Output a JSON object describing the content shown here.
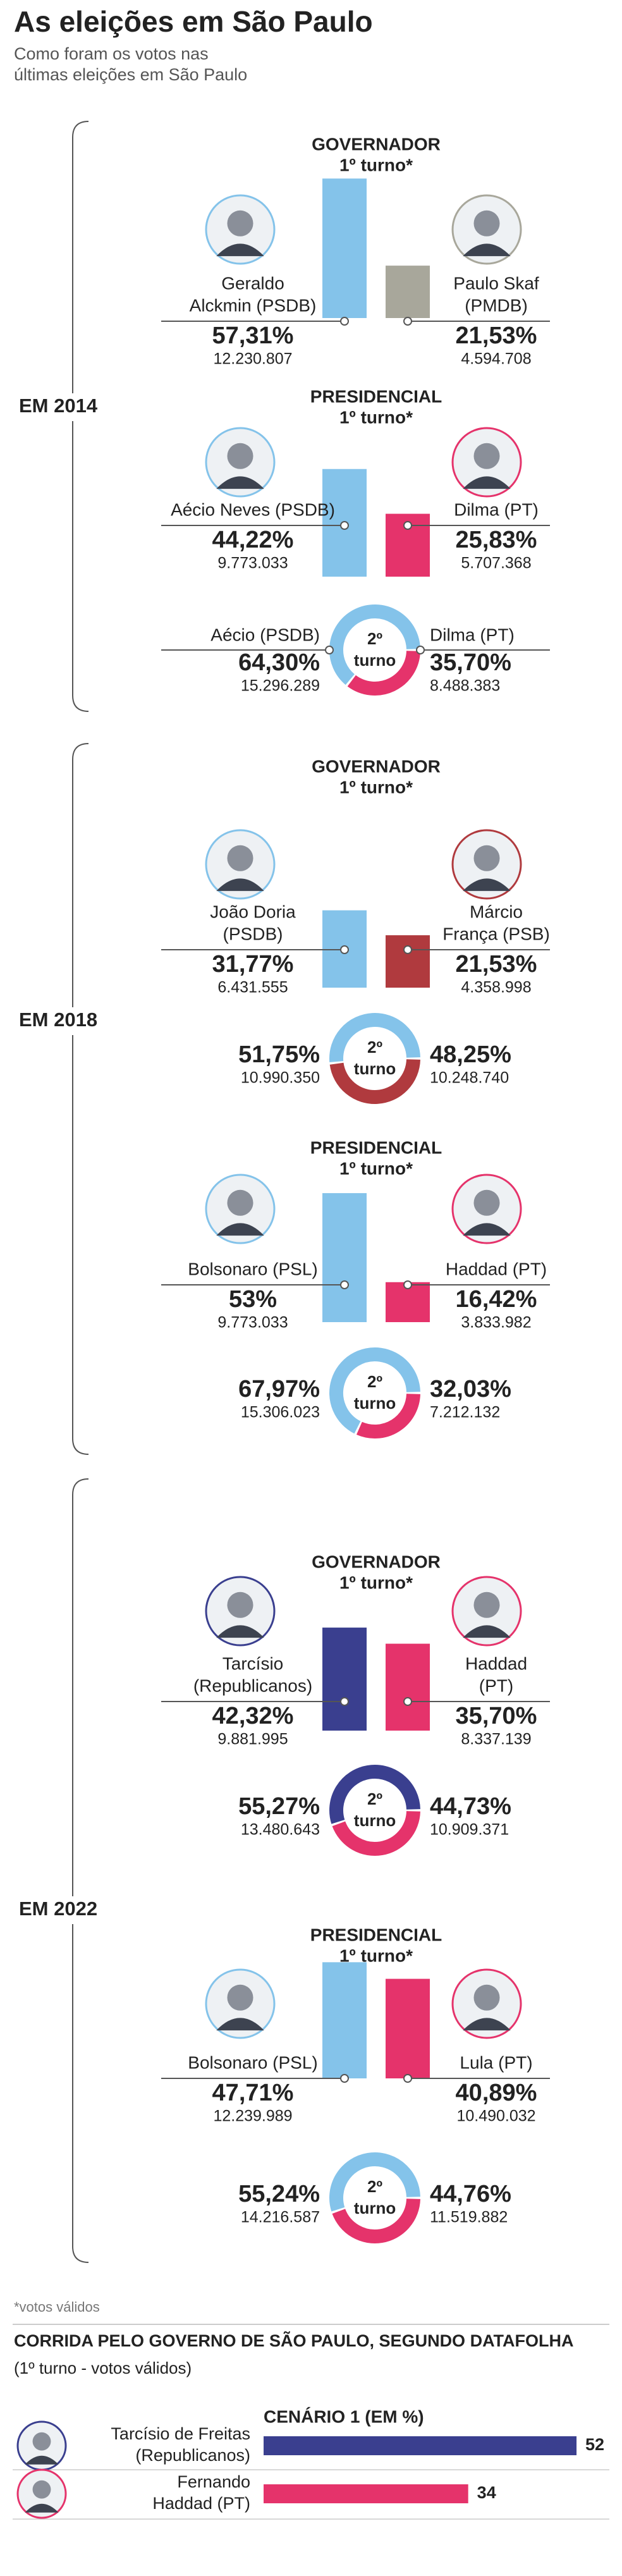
{
  "title": "As eleições em São Paulo",
  "subtitle": [
    "Como foram os votos nas",
    "últimas eleições em São Paulo"
  ],
  "sections": [
    {
      "label": "EM 2014",
      "races": [
        {
          "kind": "bars",
          "heading": [
            "GOVERNADOR",
            "1º turno*"
          ],
          "candidates": [
            {
              "name": [
                "Geraldo",
                "Alckmin (PSDB)"
              ],
              "color": "#84c3ea",
              "text_color": "#1a8dcc",
              "value": 57.31,
              "value_label": "57,31%",
              "votes": "12.230.807"
            },
            {
              "name": [
                "Paulo Skaf",
                "(PMDB)"
              ],
              "color": "#a8a79b",
              "text_color": "#9b9a8e",
              "value": 21.53,
              "value_label": "21,53%",
              "votes": "4.594.708"
            }
          ]
        },
        {
          "kind": "bars",
          "heading": [
            "PRESIDENCIAL",
            "1º turno*"
          ],
          "candidates": [
            {
              "name": [
                "Aécio Neves (PSDB)"
              ],
              "color": "#84c3ea",
              "text_color": "#1a8dcc",
              "value": 44.22,
              "value_label": "44,22%",
              "votes": "9.773.033"
            },
            {
              "name": [
                "Dilma (PT)"
              ],
              "color": "#e5336b",
              "text_color": "#e5336b",
              "value": 25.83,
              "value_label": "25,83%",
              "votes": "5.707.368"
            }
          ]
        },
        {
          "kind": "donut",
          "turn_label": [
            "2º",
            "turno"
          ],
          "candidates": [
            {
              "name": [
                "Aécio (PSDB)"
              ],
              "color": "#84c3ea",
              "text_color": "#1a8dcc",
              "value": 64.3,
              "value_label": "64,30%",
              "votes": "15.296.289"
            },
            {
              "name": [
                "Dilma (PT)"
              ],
              "color": "#e5336b",
              "text_color": "#e5336b",
              "value": 35.7,
              "value_label": "35,70%",
              "votes": "8.488.383"
            }
          ]
        }
      ]
    },
    {
      "label": "EM 2018",
      "races": [
        {
          "kind": "bars",
          "heading": [
            "GOVERNADOR",
            "1º turno*"
          ],
          "candidates": [
            {
              "name": [
                "João Doria",
                "(PSDB)"
              ],
              "color": "#84c3ea",
              "text_color": "#1a8dcc",
              "value": 31.77,
              "value_label": "31,77%",
              "votes": "6.431.555"
            },
            {
              "name": [
                "Márcio",
                "França (PSB)"
              ],
              "color": "#b03a3e",
              "text_color": "#b03a3e",
              "value": 21.53,
              "value_label": "21,53%",
              "votes": "4.358.998"
            }
          ]
        },
        {
          "kind": "donut",
          "turn_label": [
            "2º",
            "turno"
          ],
          "candidates": [
            {
              "color": "#84c3ea",
              "text_color": "#1a8dcc",
              "value": 51.75,
              "value_label": "51,75%",
              "votes": "10.990.350"
            },
            {
              "color": "#b03a3e",
              "text_color": "#b03a3e",
              "value": 48.25,
              "value_label": "48,25%",
              "votes": "10.248.740"
            }
          ]
        },
        {
          "kind": "bars",
          "heading": [
            "PRESIDENCIAL",
            "1º turno*"
          ],
          "candidates": [
            {
              "name": [
                "Bolsonaro (PSL)"
              ],
              "color": "#84c3ea",
              "text_color": "#1a8dcc",
              "value": 53,
              "value_label": "53%",
              "votes": "9.773.033"
            },
            {
              "name": [
                "Haddad (PT)"
              ],
              "color": "#e5336b",
              "text_color": "#e5336b",
              "value": 16.42,
              "value_label": "16,42%",
              "votes": "3.833.982"
            }
          ]
        },
        {
          "kind": "donut",
          "turn_label": [
            "2º",
            "turno"
          ],
          "candidates": [
            {
              "color": "#84c3ea",
              "text_color": "#1a8dcc",
              "value": 67.97,
              "value_label": "67,97%",
              "votes": "15.306.023"
            },
            {
              "color": "#e5336b",
              "text_color": "#e5336b",
              "value": 32.03,
              "value_label": "32,03%",
              "votes": "7.212.132"
            }
          ]
        }
      ]
    },
    {
      "label": "EM 2022",
      "races": [
        {
          "kind": "bars",
          "heading": [
            "GOVERNADOR",
            "1º turno*"
          ],
          "candidates": [
            {
              "name": [
                "Tarcísio",
                "(Republicanos)"
              ],
              "color": "#3a3f8f",
              "text_color": "#3a3f8f",
              "value": 42.32,
              "value_label": "42,32%",
              "votes": "9.881.995"
            },
            {
              "name": [
                "Haddad",
                "(PT)"
              ],
              "color": "#e5336b",
              "text_color": "#e5336b",
              "value": 35.7,
              "value_label": "35,70%",
              "votes": "8.337.139"
            }
          ]
        },
        {
          "kind": "donut",
          "turn_label": [
            "2º",
            "turno"
          ],
          "candidates": [
            {
              "color": "#3a3f8f",
              "text_color": "#3a3f8f",
              "value": 55.27,
              "value_label": "55,27%",
              "votes": "13.480.643"
            },
            {
              "color": "#e5336b",
              "text_color": "#e5336b",
              "value": 44.73,
              "value_label": "44,73%",
              "votes": "10.909.371"
            }
          ]
        },
        {
          "kind": "bars",
          "heading": [
            "PRESIDENCIAL",
            "1º turno*"
          ],
          "candidates": [
            {
              "name": [
                "Bolsonaro (PSL)"
              ],
              "color": "#84c3ea",
              "text_color": "#1a8dcc",
              "value": 47.71,
              "value_label": "47,71%",
              "votes": "12.239.989"
            },
            {
              "name": [
                "Lula (PT)"
              ],
              "color": "#e5336b",
              "text_color": "#e5336b",
              "value": 40.89,
              "value_label": "40,89%",
              "votes": "10.490.032"
            }
          ]
        },
        {
          "kind": "donut",
          "turn_label": [
            "2º",
            "turno"
          ],
          "candidates": [
            {
              "color": "#84c3ea",
              "text_color": "#1a8dcc",
              "value": 55.24,
              "value_label": "55,24%",
              "votes": "14.216.587"
            },
            {
              "color": "#e5336b",
              "text_color": "#e5336b",
              "value": 44.76,
              "value_label": "44,76%",
              "votes": "11.519.882"
            }
          ]
        }
      ]
    }
  ],
  "footnote": "*votos válidos",
  "poll": {
    "title": "CORRIDA PELO GOVERNO DE SÃO PAULO, SEGUNDO DATAFOLHA",
    "subtitle": "(1º turno - votos válidos)",
    "scenario": "CENÁRIO 1 (EM %)",
    "rows": [
      {
        "name": [
          "Tarcísio de Freitas",
          "(Republicanos)"
        ],
        "color": "#3a3f8f",
        "value": 52
      },
      {
        "name": [
          "Fernando",
          "Haddad (PT)"
        ],
        "color": "#e5336b",
        "value": 34
      }
    ]
  }
}
